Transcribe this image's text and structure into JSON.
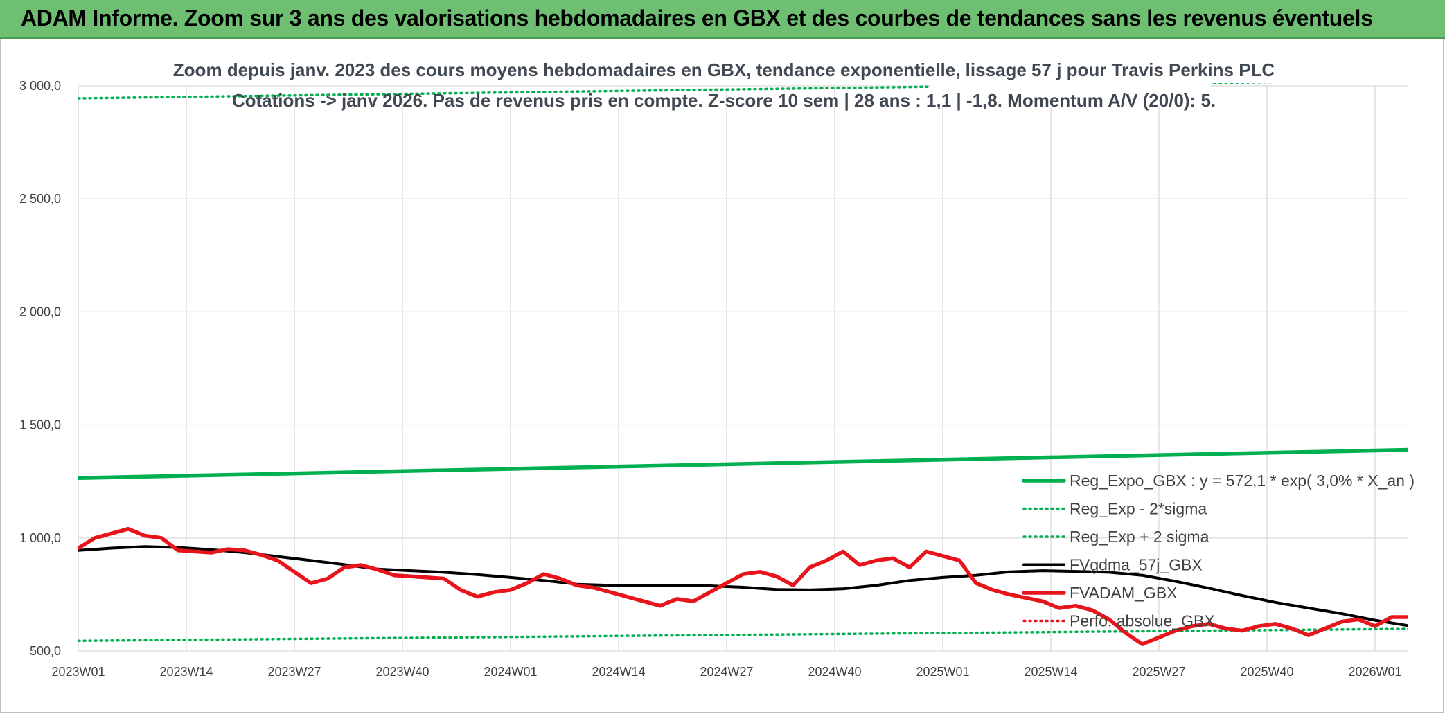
{
  "header": {
    "title": "ADAM Informe. Zoom sur 3 ans des valorisations hebdomadaires en GBX et des courbes de tendances sans les revenus éventuels"
  },
  "chart_data": {
    "type": "line",
    "title_lines": [
      "Zoom depuis janv. 2023 des cours moyens hebdomadaires en GBX, tendance exponentielle, lissage 57 j pour Travis Perkins PLC",
      "Cotations -> janv 2026. Pas de revenus pris en compte. Z-score 10 sem | 28 ans : 1,1 | -1,8. Momentum A/V (20/0): 5."
    ],
    "x_tick_labels": [
      "2023W01",
      "2023W14",
      "2023W27",
      "2023W40",
      "2024W01",
      "2024W14",
      "2024W27",
      "2024W40",
      "2025W01",
      "2025W14",
      "2025W27",
      "2025W40",
      "2026W01"
    ],
    "y_tick_labels": [
      "500,0",
      "1 000,0",
      "1 500,0",
      "2 000,0",
      "2 500,0",
      "3 000,0"
    ],
    "y_ticks": [
      500,
      1000,
      1500,
      2000,
      2500,
      3000
    ],
    "ylim": [
      500,
      3000
    ],
    "x_range_weeks": [
      0,
      160
    ],
    "grid": true,
    "legend_position": "bottom-right",
    "series": [
      {
        "name": "Reg_Expo_GBX : y = 572,1 * exp( 3,0% *  X_an )",
        "color": "#00b050",
        "style": "solid-thick",
        "x": [
          0,
          160
        ],
        "y": [
          1265,
          1390
        ]
      },
      {
        "name": "Reg_Exp - 2*sigma",
        "color": "#00b050",
        "style": "dotted",
        "x": [
          0,
          160
        ],
        "y": [
          545,
          598
        ]
      },
      {
        "name": "Reg_Exp + 2 sigma",
        "color": "#00b050",
        "style": "dotted",
        "x": [
          0,
          160
        ],
        "y": [
          2945,
          3025
        ]
      },
      {
        "name": "FVgdma_57j_GBX",
        "color": "#000000",
        "style": "solid",
        "x": [
          0,
          4,
          8,
          12,
          16,
          20,
          24,
          28,
          32,
          36,
          40,
          44,
          48,
          52,
          56,
          60,
          64,
          68,
          72,
          76,
          80,
          84,
          88,
          92,
          96,
          100,
          104,
          108,
          112,
          116,
          120,
          124,
          128,
          132,
          136,
          140,
          144,
          148,
          152,
          156,
          160
        ],
        "y": [
          945,
          955,
          962,
          958,
          948,
          935,
          918,
          900,
          882,
          862,
          855,
          848,
          838,
          825,
          812,
          795,
          790,
          790,
          790,
          788,
          782,
          772,
          770,
          775,
          790,
          812,
          825,
          835,
          850,
          855,
          852,
          848,
          835,
          808,
          778,
          745,
          715,
          690,
          665,
          636,
          612
        ]
      },
      {
        "name": "FVADAM_GBX",
        "color": "#e8141b",
        "style": "solid-thick",
        "x": [
          0,
          2,
          4,
          6,
          8,
          10,
          12,
          14,
          16,
          18,
          20,
          22,
          24,
          26,
          28,
          30,
          32,
          34,
          36,
          38,
          40,
          42,
          44,
          46,
          48,
          50,
          52,
          54,
          56,
          58,
          60,
          62,
          64,
          66,
          68,
          70,
          72,
          74,
          76,
          78,
          80,
          82,
          84,
          86,
          88,
          90,
          92,
          94,
          96,
          98,
          100,
          102,
          104,
          106,
          108,
          110,
          112,
          114,
          116,
          118,
          120,
          122,
          124,
          126,
          128,
          130,
          132,
          134,
          136,
          138,
          140,
          142,
          144,
          146,
          148,
          150,
          152,
          154,
          156,
          158,
          160
        ],
        "y": [
          955,
          1000,
          1020,
          1040,
          1010,
          1000,
          945,
          940,
          935,
          950,
          945,
          925,
          900,
          850,
          800,
          820,
          870,
          880,
          860,
          835,
          830,
          825,
          820,
          770,
          740,
          760,
          770,
          800,
          840,
          820,
          790,
          780,
          760,
          740,
          720,
          700,
          730,
          720,
          760,
          800,
          840,
          850,
          830,
          790,
          870,
          900,
          940,
          880,
          900,
          910,
          870,
          940,
          920,
          900,
          800,
          770,
          750,
          735,
          720,
          690,
          700,
          680,
          640,
          580,
          530,
          560,
          590,
          610,
          620,
          600,
          590,
          610,
          620,
          600,
          570,
          600,
          630,
          640,
          610,
          650,
          650
        ]
      },
      {
        "name": "Perfo. absolue_GBX",
        "color": "#e8141b",
        "style": "dotted"
      }
    ]
  }
}
